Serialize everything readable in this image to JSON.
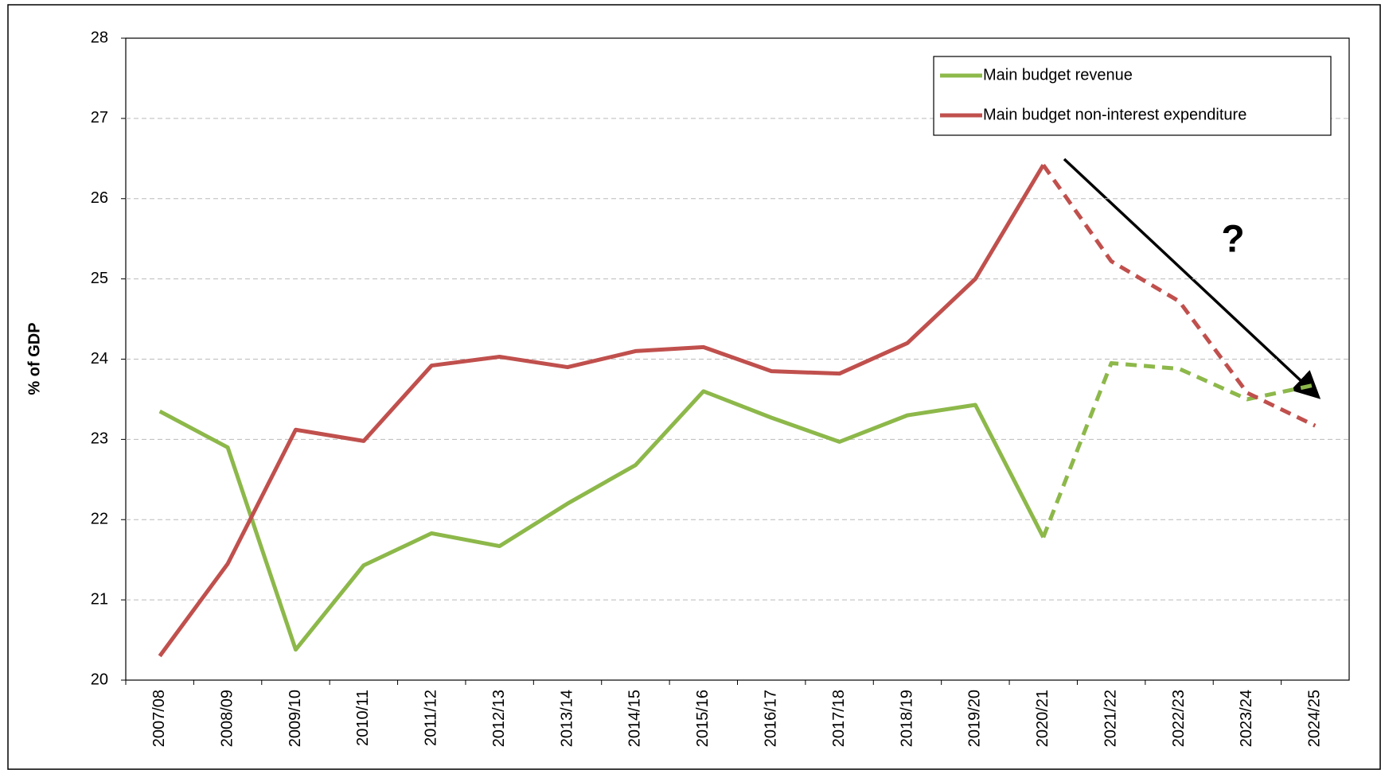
{
  "chart_data": {
    "type": "line",
    "y_label": "% of GDP",
    "annotation": "?",
    "categories": [
      "2007/08",
      "2008/09",
      "2009/10",
      "2010/11",
      "2011/12",
      "2012/13",
      "2013/14",
      "2014/15",
      "2015/16",
      "2016/17",
      "2017/18",
      "2018/19",
      "2019/20",
      "2020/21",
      "2021/22",
      "2022/23",
      "2023/24",
      "2024/25"
    ],
    "series": [
      {
        "name": "Main budget revenue",
        "color": "#8db84a",
        "values": [
          23.35,
          22.9,
          20.38,
          21.43,
          21.83,
          21.67,
          22.2,
          22.68,
          23.6,
          23.27,
          22.97,
          23.3,
          23.43,
          21.78,
          23.95,
          23.88,
          23.5,
          23.68
        ]
      },
      {
        "name": "Main budget non-interest expenditure",
        "color": "#c0504d",
        "values": [
          20.3,
          21.45,
          23.12,
          22.98,
          23.92,
          24.03,
          23.9,
          24.1,
          24.15,
          23.85,
          23.82,
          24.2,
          25.0,
          26.42,
          25.22,
          24.72,
          23.58,
          23.17
        ]
      }
    ],
    "dash_from": 13,
    "ylim": [
      20,
      28
    ],
    "yticks": [
      20,
      21,
      22,
      23,
      24,
      25,
      26,
      27,
      28
    ],
    "grid": true,
    "legend": "top-right"
  }
}
